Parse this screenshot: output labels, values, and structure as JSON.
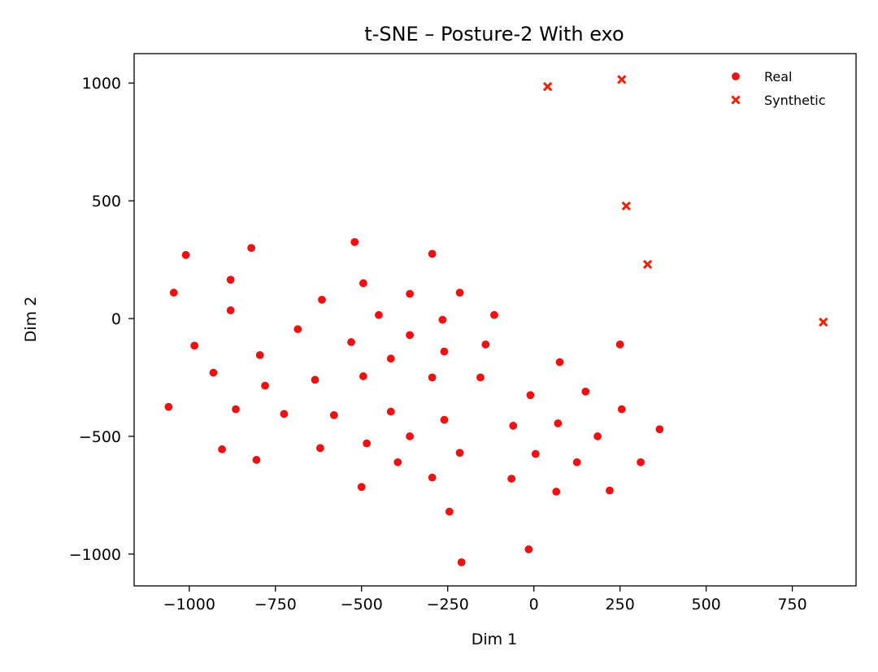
{
  "chart_data": {
    "type": "scatter",
    "title": "t-SNE – Posture-2 With exo",
    "xlabel": "Dim 1",
    "ylabel": "Dim 2",
    "xlim": [
      -1160,
      935
    ],
    "ylim": [
      -1135,
      1125
    ],
    "xticks": [
      -1000,
      -750,
      -500,
      -250,
      0,
      250,
      500,
      750
    ],
    "yticks": [
      -1000,
      -500,
      0,
      500,
      1000
    ],
    "xtick_labels": [
      "−1000",
      "−750",
      "−500",
      "−250",
      "0",
      "250",
      "500",
      "750"
    ],
    "ytick_labels": [
      "−1000",
      "−500",
      "0",
      "500",
      "1000"
    ],
    "grid": false,
    "legend_position": "top-right",
    "series": [
      {
        "name": "Real",
        "marker": "circle",
        "color": "#ee1111",
        "points": [
          [
            -1010,
            270
          ],
          [
            -1045,
            110
          ],
          [
            -985,
            -115
          ],
          [
            -930,
            -230
          ],
          [
            -1060,
            -375
          ],
          [
            -905,
            -555
          ],
          [
            -880,
            165
          ],
          [
            -880,
            35
          ],
          [
            -820,
            300
          ],
          [
            -795,
            -155
          ],
          [
            -865,
            -385
          ],
          [
            -780,
            -285
          ],
          [
            -805,
            -600
          ],
          [
            -725,
            -405
          ],
          [
            -685,
            -45
          ],
          [
            -635,
            -260
          ],
          [
            -615,
            80
          ],
          [
            -620,
            -550
          ],
          [
            -580,
            -410
          ],
          [
            -530,
            -100
          ],
          [
            -520,
            325
          ],
          [
            -495,
            150
          ],
          [
            -495,
            -245
          ],
          [
            -485,
            -530
          ],
          [
            -500,
            -715
          ],
          [
            -450,
            15
          ],
          [
            -415,
            -170
          ],
          [
            -415,
            -395
          ],
          [
            -395,
            -610
          ],
          [
            -360,
            105
          ],
          [
            -360,
            -70
          ],
          [
            -360,
            -500
          ],
          [
            -295,
            275
          ],
          [
            -295,
            -250
          ],
          [
            -295,
            -675
          ],
          [
            -265,
            -5
          ],
          [
            -260,
            -140
          ],
          [
            -260,
            -430
          ],
          [
            -245,
            -820
          ],
          [
            -215,
            110
          ],
          [
            -215,
            -570
          ],
          [
            -210,
            -1035
          ],
          [
            -155,
            -250
          ],
          [
            -140,
            -110
          ],
          [
            -115,
            15
          ],
          [
            -65,
            -680
          ],
          [
            -60,
            -455
          ],
          [
            -15,
            -980
          ],
          [
            -10,
            -325
          ],
          [
            5,
            -575
          ],
          [
            65,
            -735
          ],
          [
            70,
            -445
          ],
          [
            75,
            -185
          ],
          [
            125,
            -610
          ],
          [
            150,
            -310
          ],
          [
            185,
            -500
          ],
          [
            220,
            -730
          ],
          [
            250,
            -110
          ],
          [
            255,
            -385
          ],
          [
            310,
            -610
          ],
          [
            365,
            -470
          ]
        ]
      },
      {
        "name": "Synthetic",
        "marker": "x",
        "color": "#ee2200",
        "points": [
          [
            40,
            985
          ],
          [
            255,
            1015
          ],
          [
            268,
            478
          ],
          [
            330,
            230
          ],
          [
            840,
            -15
          ]
        ]
      }
    ]
  }
}
